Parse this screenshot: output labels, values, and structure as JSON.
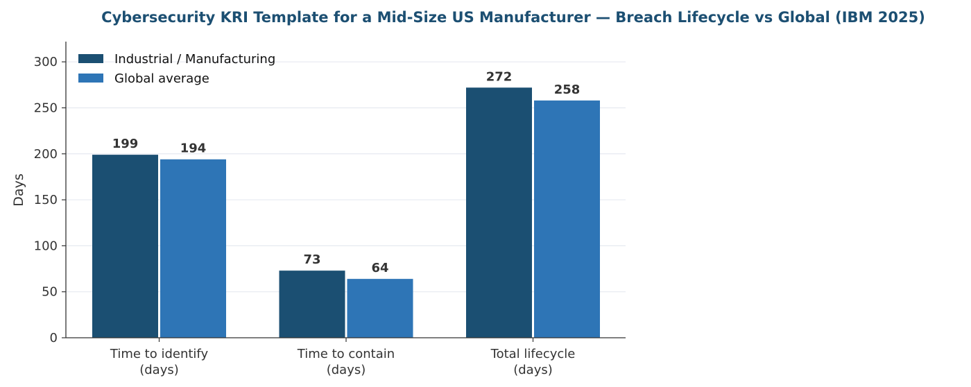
{
  "colors": {
    "industrial": "#1b4f72",
    "global": "#2e75b6",
    "title": "#1c4f72",
    "grid": "#e6e9f0",
    "axis": "#333333"
  },
  "chart_data": {
    "type": "bar",
    "title": "Cybersecurity KRI Template for a Mid-Size US Manufacturer — Breach Lifecycle vs Global (IBM 2025)",
    "xlabel": "",
    "ylabel": "Days",
    "categories": [
      [
        "Time to identify",
        "(days)"
      ],
      [
        "Time to contain",
        "(days)"
      ],
      [
        "Total lifecycle",
        "(days)"
      ]
    ],
    "series": [
      {
        "name": "Industrial / Manufacturing",
        "values": [
          199,
          73,
          272
        ]
      },
      {
        "name": "Global average",
        "values": [
          194,
          64,
          258
        ]
      }
    ],
    "ylim": [
      0,
      322
    ],
    "yticks": [
      0,
      50,
      100,
      150,
      200,
      250,
      300
    ],
    "grid": "horizontal",
    "legend": "top-left"
  }
}
